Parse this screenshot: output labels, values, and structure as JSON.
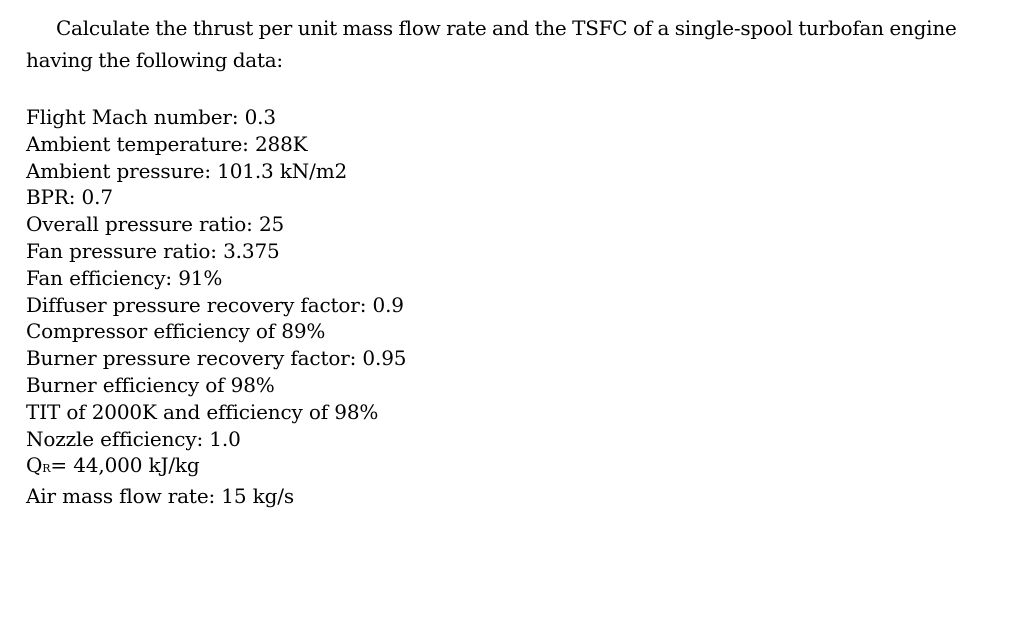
{
  "problem": {
    "statement": "Calculate the thrust per unit mass flow rate and the TSFC of a single-spool turbofan engine having the following data:"
  },
  "data_items": [
    "Flight Mach number: 0.3",
    "Ambient temperature: 288K",
    "Ambient pressure: 101.3 kN/m2",
    "BPR: 0.7",
    "Overall pressure ratio: 25",
    "Fan pressure ratio: 3.375",
    "Fan efficiency: 91%",
    "Diffuser pressure recovery factor: 0.9",
    "Compressor efficiency of 89%",
    "Burner pressure recovery factor: 0.95",
    "Burner efficiency of 98%",
    "TIT of 2000K and efficiency of 98%",
    "Nozzle efficiency: 1.0"
  ],
  "heat_value": {
    "symbol": "Q",
    "subscript": "R",
    "rest": "= 44,000 kJ/kg"
  },
  "mass_flow": "Air mass flow rate: 15 kg/s"
}
